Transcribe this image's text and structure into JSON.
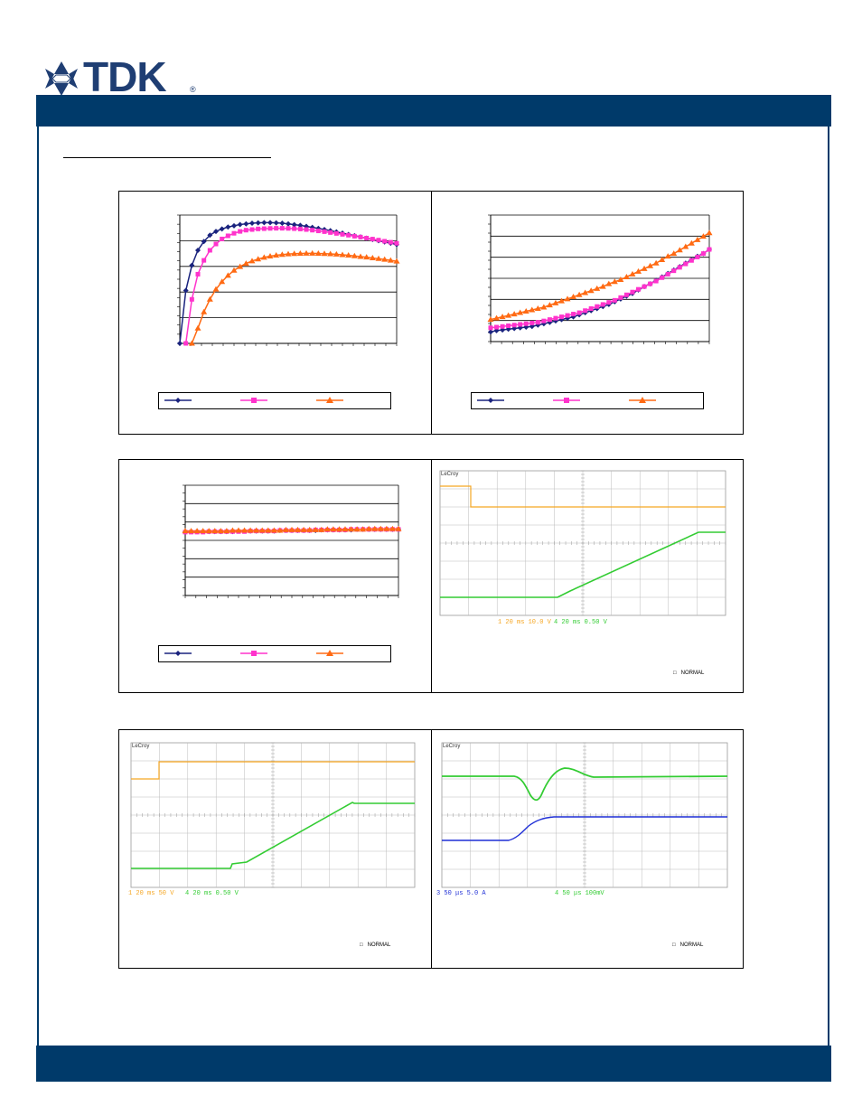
{
  "brand": {
    "name": "TDK",
    "registered": "®"
  },
  "colors": {
    "header": "#003a6a",
    "navy": "#1a237e",
    "magenta": "#ff33cc",
    "orange": "#ff6a13",
    "scope_green": "#33cc33",
    "scope_orange": "#f5a623",
    "scope_blue": "#1f2fd6"
  },
  "charts": {
    "efficiency": {
      "type": "line",
      "series": [
        {
          "color": "navy",
          "marker": "diamond",
          "values": [
            0.0,
            0.42,
            0.62,
            0.74,
            0.81,
            0.86,
            0.89,
            0.91,
            0.925,
            0.935,
            0.945,
            0.95,
            0.955,
            0.958,
            0.96,
            0.96,
            0.958,
            0.955,
            0.95,
            0.944,
            0.938,
            0.93,
            0.922,
            0.914,
            0.905,
            0.896,
            0.886,
            0.876,
            0.866,
            0.856,
            0.846,
            0.836,
            0.826,
            0.816,
            0.806,
            0.796,
            0.786
          ]
        },
        {
          "color": "magenta",
          "marker": "square",
          "values": [
            -0.1,
            0.0,
            0.35,
            0.55,
            0.66,
            0.74,
            0.79,
            0.83,
            0.855,
            0.875,
            0.89,
            0.9,
            0.905,
            0.91,
            0.912,
            0.914,
            0.915,
            0.915,
            0.914,
            0.912,
            0.909,
            0.905,
            0.9,
            0.894,
            0.888,
            0.881,
            0.874,
            0.867,
            0.86,
            0.852,
            0.845,
            0.837,
            0.829,
            0.821,
            0.812,
            0.804,
            0.796
          ]
        },
        {
          "color": "orange",
          "marker": "triangle",
          "values": [
            -0.2,
            -0.1,
            0.0,
            0.12,
            0.25,
            0.35,
            0.43,
            0.49,
            0.54,
            0.58,
            0.61,
            0.635,
            0.655,
            0.67,
            0.683,
            0.693,
            0.7,
            0.706,
            0.71,
            0.713,
            0.715,
            0.716,
            0.716,
            0.715,
            0.713,
            0.711,
            0.708,
            0.704,
            0.7,
            0.695,
            0.69,
            0.685,
            0.679,
            0.673,
            0.667,
            0.66,
            0.653
          ]
        }
      ]
    },
    "dissipation": {
      "type": "line",
      "series": [
        {
          "color": "navy",
          "marker": "diamond",
          "values": [
            0.15,
            0.16,
            0.165,
            0.17,
            0.175,
            0.18,
            0.185,
            0.19,
            0.2,
            0.21,
            0.22,
            0.23,
            0.24,
            0.25,
            0.26,
            0.275,
            0.29,
            0.305,
            0.32,
            0.335,
            0.35,
            0.37,
            0.39,
            0.41,
            0.43,
            0.455,
            0.48,
            0.5,
            0.525,
            0.55,
            0.575,
            0.6,
            0.625,
            0.65,
            0.675,
            0.7,
            0.72,
            0.75
          ]
        },
        {
          "color": "magenta",
          "marker": "square",
          "values": [
            0.18,
            0.185,
            0.19,
            0.195,
            0.2,
            0.205,
            0.21,
            0.215,
            0.22,
            0.23,
            0.24,
            0.25,
            0.26,
            0.27,
            0.28,
            0.29,
            0.305,
            0.32,
            0.335,
            0.35,
            0.365,
            0.38,
            0.4,
            0.42,
            0.44,
            0.46,
            0.48,
            0.5,
            0.52,
            0.545,
            0.57,
            0.595,
            0.62,
            0.645,
            0.67,
            0.695,
            0.72,
            0.75
          ]
        },
        {
          "color": "orange",
          "marker": "triangle",
          "values": [
            0.24,
            0.25,
            0.26,
            0.27,
            0.28,
            0.29,
            0.3,
            0.31,
            0.32,
            0.33,
            0.345,
            0.36,
            0.375,
            0.39,
            0.405,
            0.42,
            0.435,
            0.45,
            0.465,
            0.48,
            0.5,
            0.515,
            0.53,
            0.55,
            0.57,
            0.59,
            0.61,
            0.63,
            0.65,
            0.675,
            0.7,
            0.72,
            0.745,
            0.77,
            0.795,
            0.82,
            0.845,
            0.87
          ]
        }
      ]
    },
    "regulation": {
      "type": "line",
      "series": [
        {
          "color": "navy",
          "marker": "diamond",
          "values": [
            0.58,
            0.58,
            0.58,
            0.58,
            0.58,
            0.58,
            0.58,
            0.58,
            0.58,
            0.585,
            0.585,
            0.585,
            0.585,
            0.585,
            0.585,
            0.585,
            0.59,
            0.59,
            0.59,
            0.59,
            0.59,
            0.59,
            0.59,
            0.595,
            0.595,
            0.595,
            0.595,
            0.595,
            0.595,
            0.6,
            0.6,
            0.6,
            0.6,
            0.6,
            0.6,
            0.6,
            0.6
          ]
        },
        {
          "color": "magenta",
          "marker": "square",
          "values": [
            0.575,
            0.575,
            0.575,
            0.575,
            0.58,
            0.58,
            0.58,
            0.58,
            0.58,
            0.58,
            0.58,
            0.585,
            0.585,
            0.585,
            0.585,
            0.585,
            0.59,
            0.59,
            0.59,
            0.59,
            0.59,
            0.59,
            0.595,
            0.595,
            0.595,
            0.595,
            0.595,
            0.595,
            0.6,
            0.6,
            0.6,
            0.6,
            0.6,
            0.6,
            0.6,
            0.6,
            0.6
          ]
        },
        {
          "color": "orange",
          "marker": "triangle",
          "values": [
            0.585,
            0.585,
            0.585,
            0.585,
            0.585,
            0.585,
            0.585,
            0.585,
            0.59,
            0.59,
            0.59,
            0.59,
            0.59,
            0.59,
            0.59,
            0.59,
            0.59,
            0.595,
            0.595,
            0.595,
            0.595,
            0.595,
            0.595,
            0.595,
            0.6,
            0.6,
            0.6,
            0.6,
            0.6,
            0.6,
            0.6,
            0.605,
            0.605,
            0.605,
            0.605,
            0.605,
            0.605
          ]
        }
      ]
    }
  },
  "scopes": {
    "scope1": {
      "logo": "LeCroy",
      "caption_left": "1 20 ms 10.0 V",
      "caption_right": "4 20 ms 0.50 V",
      "status": "NORMAL"
    },
    "scope2": {
      "logo": "LeCroy",
      "caption_left": "1 20 ms 50 V",
      "caption_right": "4 20 ms 0.50 V",
      "status": "NORMAL"
    },
    "scope3": {
      "logo": "LeCroy",
      "caption_left": "3 50 μs 5.0 A",
      "caption_right": "4 50 μs 100mV",
      "status": "NORMAL"
    }
  }
}
